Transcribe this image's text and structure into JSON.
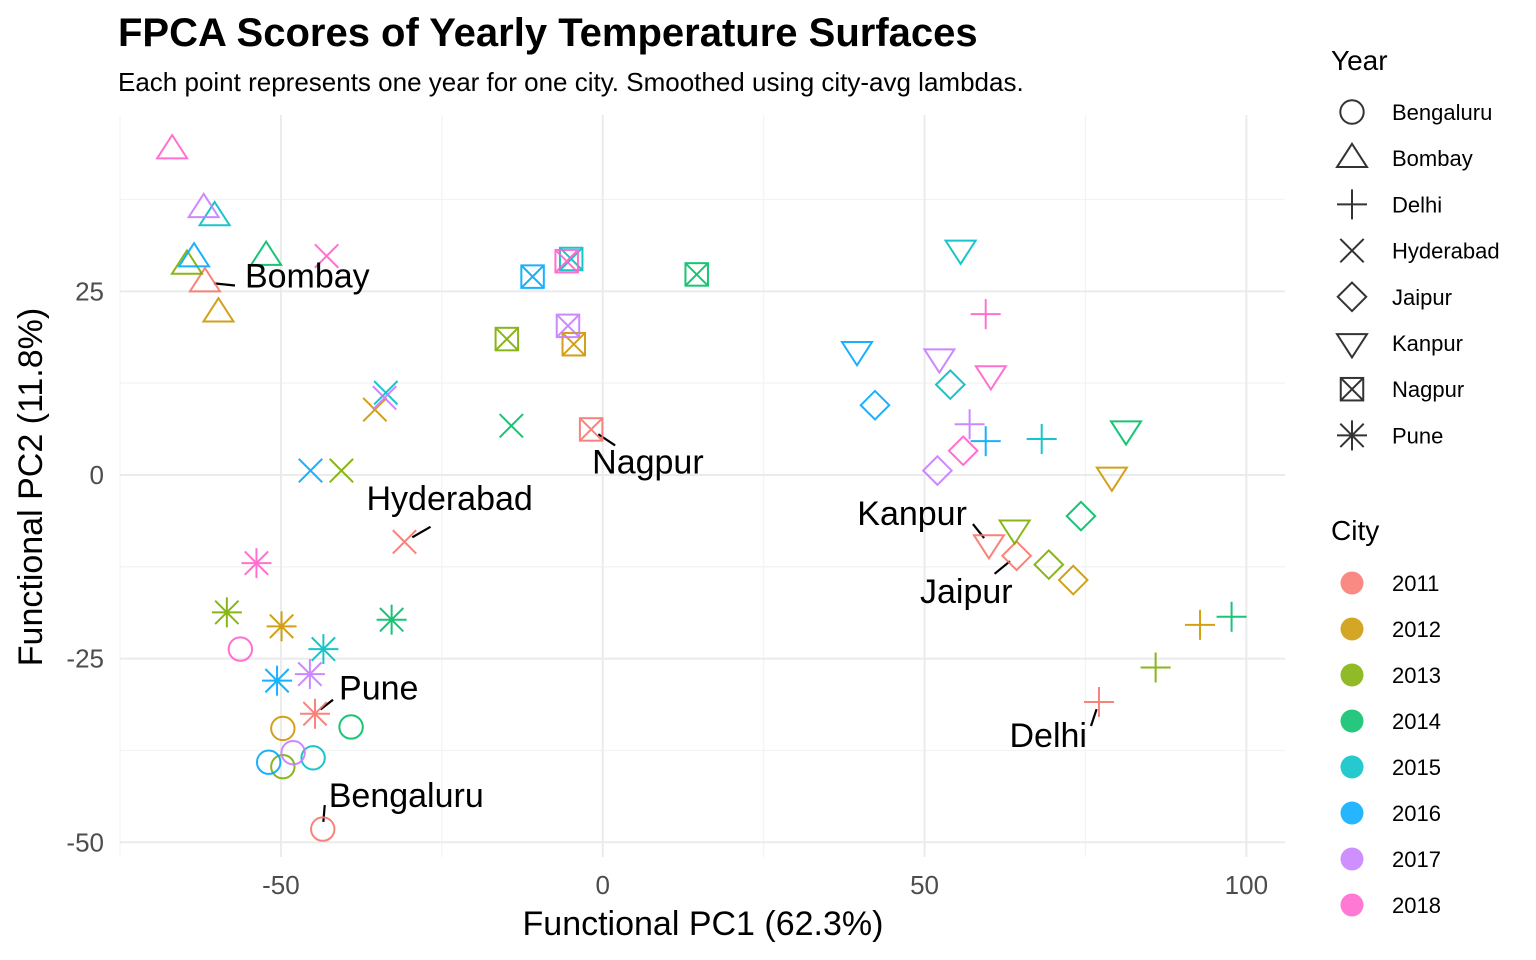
{
  "chart_data": {
    "type": "scatter",
    "title": "FPCA Scores of Yearly Temperature Surfaces",
    "subtitle": "Each point represents one year for one city. Smoothed using city-avg lambdas.",
    "xlabel": "Functional PC1 (62.3%)",
    "ylabel": "Functional PC2 (11.8%)",
    "xlim": [
      -75,
      106
    ],
    "ylim": [
      -52,
      49
    ],
    "xticks": [
      -50,
      0,
      50,
      100
    ],
    "yticks": [
      -50,
      -25,
      0,
      25
    ],
    "xtick_labels": [
      "-50",
      "0",
      "50",
      "100"
    ],
    "ytick_labels": [
      "-50",
      "-25",
      "0",
      "25"
    ],
    "grid": true,
    "legend_position": "right",
    "shape_legend": {
      "title": "Year",
      "entries": [
        {
          "label": "Bengaluru",
          "shape": "circle"
        },
        {
          "label": "Bombay",
          "shape": "triangle"
        },
        {
          "label": "Delhi",
          "shape": "plus"
        },
        {
          "label": "Hyderabad",
          "shape": "cross"
        },
        {
          "label": "Jaipur",
          "shape": "diamond"
        },
        {
          "label": "Kanpur",
          "shape": "triangle-down"
        },
        {
          "label": "Nagpur",
          "shape": "square-x"
        },
        {
          "label": "Pune",
          "shape": "asterisk"
        }
      ]
    },
    "color_legend": {
      "title": "City",
      "entries": [
        {
          "label": "2011",
          "color": "#F8766D"
        },
        {
          "label": "2012",
          "color": "#CD9600"
        },
        {
          "label": "2013",
          "color": "#7CAE00"
        },
        {
          "label": "2014",
          "color": "#00BE67"
        },
        {
          "label": "2015",
          "color": "#00BFC4"
        },
        {
          "label": "2016",
          "color": "#00A9FF"
        },
        {
          "label": "2017",
          "color": "#C77CFF"
        },
        {
          "label": "2018",
          "color": "#FF61CC"
        }
      ]
    },
    "series": [
      {
        "name": "Bengaluru",
        "shape": "circle",
        "points": [
          {
            "year": "2011",
            "x": -43.5,
            "y": -48.2
          },
          {
            "year": "2012",
            "x": -49.7,
            "y": -34.5
          },
          {
            "year": "2013",
            "x": -49.7,
            "y": -39.7
          },
          {
            "year": "2014",
            "x": -39.1,
            "y": -34.3
          },
          {
            "year": "2015",
            "x": -45.0,
            "y": -38.5
          },
          {
            "year": "2016",
            "x": -51.9,
            "y": -39.1
          },
          {
            "year": "2017",
            "x": -48.1,
            "y": -37.8
          },
          {
            "year": "2018",
            "x": -56.3,
            "y": -23.7
          }
        ]
      },
      {
        "name": "Bombay",
        "shape": "triangle",
        "points": [
          {
            "year": "2011",
            "x": -61.8,
            "y": 26.2
          },
          {
            "year": "2012",
            "x": -59.7,
            "y": 22.1
          },
          {
            "year": "2013",
            "x": -64.6,
            "y": 28.6
          },
          {
            "year": "2014",
            "x": -52.3,
            "y": 29.8
          },
          {
            "year": "2015",
            "x": -60.3,
            "y": 35.2
          },
          {
            "year": "2016",
            "x": -63.5,
            "y": 29.6
          },
          {
            "year": "2017",
            "x": -62.0,
            "y": 36.3
          },
          {
            "year": "2018",
            "x": -66.9,
            "y": 44.3
          }
        ]
      },
      {
        "name": "Delhi",
        "shape": "plus",
        "points": [
          {
            "year": "2011",
            "x": 77.1,
            "y": -30.9
          },
          {
            "year": "2012",
            "x": 92.8,
            "y": -20.4
          },
          {
            "year": "2013",
            "x": 85.9,
            "y": -26.2
          },
          {
            "year": "2014",
            "x": 97.7,
            "y": -19.3
          },
          {
            "year": "2015",
            "x": 68.2,
            "y": 4.9
          },
          {
            "year": "2016",
            "x": 59.5,
            "y": 4.6
          },
          {
            "year": "2017",
            "x": 57.0,
            "y": 6.9
          },
          {
            "year": "2018",
            "x": 59.5,
            "y": 21.9
          }
        ]
      },
      {
        "name": "Hyderabad",
        "shape": "cross",
        "points": [
          {
            "year": "2011",
            "x": -30.8,
            "y": -9.1
          },
          {
            "year": "2012",
            "x": -35.4,
            "y": 8.9
          },
          {
            "year": "2013",
            "x": -40.6,
            "y": 0.6
          },
          {
            "year": "2014",
            "x": -14.2,
            "y": 6.7
          },
          {
            "year": "2015",
            "x": -33.7,
            "y": 11.2
          },
          {
            "year": "2016",
            "x": -45.4,
            "y": 0.6
          },
          {
            "year": "2017",
            "x": -33.9,
            "y": 10.5
          },
          {
            "year": "2018",
            "x": -42.9,
            "y": 29.8
          }
        ]
      },
      {
        "name": "Jaipur",
        "shape": "diamond",
        "points": [
          {
            "year": "2011",
            "x": 64.3,
            "y": -11.0
          },
          {
            "year": "2012",
            "x": 73.1,
            "y": -14.3
          },
          {
            "year": "2013",
            "x": 69.3,
            "y": -12.2
          },
          {
            "year": "2014",
            "x": 74.3,
            "y": -5.6
          },
          {
            "year": "2015",
            "x": 54.0,
            "y": 12.3
          },
          {
            "year": "2016",
            "x": 42.3,
            "y": 9.5
          },
          {
            "year": "2017",
            "x": 52.0,
            "y": 0.6
          },
          {
            "year": "2018",
            "x": 56.0,
            "y": 3.3
          }
        ]
      },
      {
        "name": "Kanpur",
        "shape": "triangle-down",
        "points": [
          {
            "year": "2011",
            "x": 60.0,
            "y": -9.4
          },
          {
            "year": "2012",
            "x": 79.1,
            "y": -0.2
          },
          {
            "year": "2013",
            "x": 64.0,
            "y": -7.4
          },
          {
            "year": "2014",
            "x": 81.3,
            "y": 6.1
          },
          {
            "year": "2015",
            "x": 55.6,
            "y": 30.7
          },
          {
            "year": "2016",
            "x": 39.5,
            "y": 16.9
          },
          {
            "year": "2017",
            "x": 52.3,
            "y": 15.9
          },
          {
            "year": "2018",
            "x": 60.3,
            "y": 13.6
          }
        ]
      },
      {
        "name": "Nagpur",
        "shape": "square-x",
        "points": [
          {
            "year": "2011",
            "x": -1.8,
            "y": 6.2
          },
          {
            "year": "2012",
            "x": -4.5,
            "y": 17.8
          },
          {
            "year": "2013",
            "x": -14.9,
            "y": 18.5
          },
          {
            "year": "2014",
            "x": 14.6,
            "y": 27.3
          },
          {
            "year": "2015",
            "x": -4.9,
            "y": 29.4
          },
          {
            "year": "2016",
            "x": -10.9,
            "y": 27.0
          },
          {
            "year": "2017",
            "x": -5.4,
            "y": 20.3
          },
          {
            "year": "2018",
            "x": -5.6,
            "y": 29.1
          }
        ]
      },
      {
        "name": "Pune",
        "shape": "asterisk",
        "points": [
          {
            "year": "2011",
            "x": -44.7,
            "y": -32.5
          },
          {
            "year": "2012",
            "x": -49.9,
            "y": -20.6
          },
          {
            "year": "2013",
            "x": -58.4,
            "y": -18.7
          },
          {
            "year": "2014",
            "x": -32.8,
            "y": -19.7
          },
          {
            "year": "2015",
            "x": -43.4,
            "y": -23.7
          },
          {
            "year": "2016",
            "x": -50.6,
            "y": -28.0
          },
          {
            "year": "2017",
            "x": -45.5,
            "y": -27.1
          },
          {
            "year": "2018",
            "x": -53.8,
            "y": -12.0
          }
        ]
      }
    ],
    "annotations": [
      {
        "label": "Bombay",
        "x": -61.8,
        "y": 26.2
      },
      {
        "label": "Nagpur",
        "x": -1.8,
        "y": 6.2
      },
      {
        "label": "Hyderabad",
        "x": -30.8,
        "y": -9.1
      },
      {
        "label": "Kanpur",
        "x": 60.0,
        "y": -9.4
      },
      {
        "label": "Jaipur",
        "x": 64.3,
        "y": -11.0
      },
      {
        "label": "Pune",
        "x": -44.7,
        "y": -32.5
      },
      {
        "label": "Delhi",
        "x": 77.1,
        "y": -30.9
      },
      {
        "label": "Bengaluru",
        "x": -43.5,
        "y": -48.2
      }
    ]
  }
}
